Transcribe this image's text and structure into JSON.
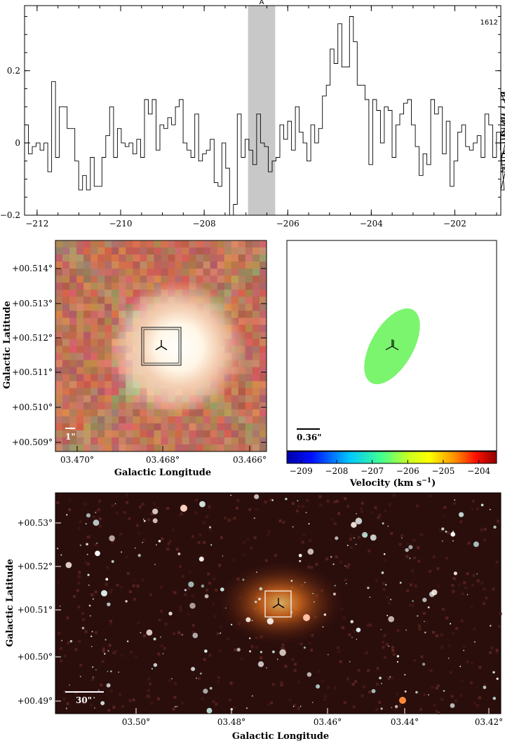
{
  "chart_data": [
    {
      "type": "line",
      "step": true,
      "annotation_top_right": "1612",
      "highlight_label": "A",
      "highlight_x_range": [
        -206.95,
        -206.3
      ],
      "xlim": [
        -212.3,
        -200.9
      ],
      "ylim": [
        -0.2,
        0.38
      ],
      "xticks": [
        -212,
        -210,
        -208,
        -206,
        -204,
        -202
      ],
      "xtick_labels": [
        "−212",
        "−210",
        "−208",
        "−206",
        "−204",
        "−202"
      ],
      "yticks": [
        -0.2,
        0,
        0.2
      ],
      "ytick_labels": [
        "−0.2",
        "0",
        "0.2"
      ],
      "x_start": -212.3,
      "x_step": 0.0926,
      "values": [
        0.05,
        -0.03,
        -0.01,
        0.0,
        -0.02,
        0.0,
        -0.08,
        0.17,
        -0.04,
        0.1,
        0.1,
        0.04,
        0.04,
        -0.05,
        -0.13,
        -0.09,
        -0.13,
        -0.04,
        -0.12,
        -0.12,
        -0.04,
        0.02,
        0.1,
        -0.04,
        0.04,
        0.0,
        -0.01,
        0.0,
        -0.03,
        0.01,
        -0.04,
        0.12,
        0.08,
        0.12,
        -0.02,
        0.05,
        0.04,
        0.07,
        0.05,
        0.1,
        0.12,
        0.0,
        -0.02,
        -0.04,
        0.08,
        -0.05,
        -0.03,
        -0.02,
        0.01,
        -0.11,
        -0.12,
        0.0,
        -0.07,
        -0.2,
        -0.17,
        0.08,
        -0.04,
        0.01,
        -0.02,
        -0.06,
        0.08,
        0.0,
        -0.01,
        -0.08,
        -0.05,
        -0.04,
        0.05,
        0.01,
        0.06,
        -0.02,
        0.1,
        0.03,
        0.0,
        -0.05,
        0.05,
        0.0,
        0.04,
        0.13,
        0.16,
        0.26,
        0.22,
        0.33,
        0.21,
        0.21,
        0.35,
        0.28,
        0.16,
        0.16,
        0.12,
        -0.06,
        0.12,
        0.09,
        0.0,
        0.1,
        0.09,
        -0.04,
        0.05,
        0.08,
        0.11,
        0.12,
        0.05,
        -0.01,
        -0.09,
        -0.03,
        -0.06,
        0.12,
        0.08,
        0.1,
        -0.03,
        0.06,
        -0.12,
        -0.05,
        0.03,
        0.05,
        -0.01,
        -0.02,
        0.0,
        0.02,
        -0.04,
        0.08,
        0.05,
        -0.04,
        0.03,
        -0.02,
        -0.13,
        -0.05,
        0.07,
        0.01,
        0.02,
        0.13,
        0.14,
        -0.07,
        -0.04,
        0.14,
        0.08,
        0.03,
        0.07,
        0.02,
        0.06,
        -0.06,
        -0.08,
        0.06,
        0.12,
        0.08,
        0.02,
        0.14,
        0.08,
        0.02,
        0.1,
        0.1,
        0.0,
        0.0,
        0.04,
        0.06,
        0.07,
        0.04,
        0.03,
        0.05,
        -0.05,
        0.02,
        -0.03,
        0.05
      ]
    },
    {
      "type": "heatmap",
      "description_kind": "false-colour infrared cutout",
      "xlabel": "Galactic Longitude",
      "ylabel": "Galactic Latitude",
      "xtick_labels": [
        "03.470°",
        "03.468°",
        "03.466°"
      ],
      "ytick_labels": [
        "+00.514°",
        "+00.513°",
        "+00.512°",
        "+00.511°",
        "+00.510°",
        "+00.509°"
      ],
      "scalebar_label": "1\""
    },
    {
      "type": "scatter",
      "scalebar_label": "0.36\"",
      "colorbar_label": "Velocity (km s",
      "colorbar_label_sup": "−1",
      "colorbar_label_end": ")",
      "colorbar_ticks": [
        -209,
        -208,
        -207,
        -206,
        -205,
        -204
      ],
      "colorbar_tick_labels": [
        "−209",
        "−208",
        "−207",
        "−206",
        "−205",
        "−204"
      ],
      "colorbar_range": [
        -209.4,
        -203.5
      ],
      "ellipse_velocity": -206.6,
      "ellipse_color": "#7bf46e"
    },
    {
      "type": "heatmap",
      "description_kind": "wide-field infrared image",
      "xlabel": "Galactic Longitude",
      "ylabel": "Galactic Latitude",
      "xtick_labels": [
        "03.50°",
        "03.48°",
        "03.46°",
        "03.44°",
        "03.42°"
      ],
      "ytick_labels": [
        "+00.53°",
        "+00.52°",
        "+00.51°",
        "+00.50°",
        "+00.49°"
      ],
      "scalebar_label": "30\""
    }
  ]
}
